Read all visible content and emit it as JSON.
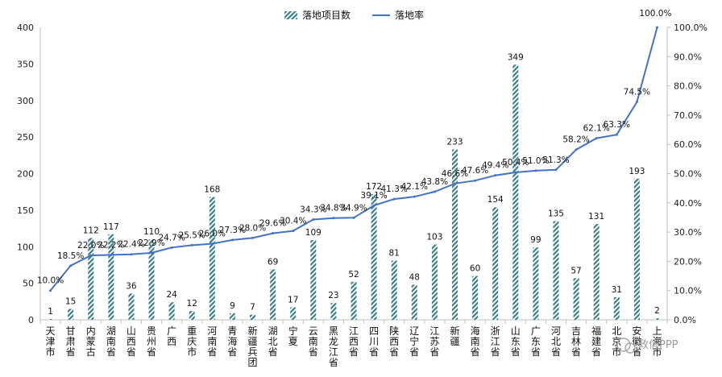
{
  "chart_data": {
    "type": "bar",
    "categories": [
      "天津市",
      "甘肃省",
      "内蒙古",
      "湖南省",
      "山西省",
      "贵州省",
      "广西",
      "重庆市",
      "河南省",
      "青海省",
      "新疆兵团",
      "湖北省",
      "宁夏",
      "云南省",
      "黑龙江省",
      "江西省",
      "四川省",
      "陕西省",
      "辽宁省",
      "江苏省",
      "新疆",
      "海南省",
      "浙江省",
      "山东省",
      "广东省",
      "河北省",
      "吉林省",
      "福建省",
      "北京市",
      "安徽省",
      "上海市"
    ],
    "series": [
      {
        "name": "落地项目数",
        "type": "bar",
        "axis": "left",
        "color": "#3a7f86",
        "values": [
          1,
          15,
          112,
          117,
          36,
          110,
          24,
          12,
          168,
          9,
          7,
          69,
          17,
          109,
          23,
          52,
          172,
          81,
          48,
          103,
          233,
          60,
          154,
          349,
          99,
          135,
          57,
          131,
          31,
          193,
          2
        ],
        "labels": [
          "1",
          "15",
          "112",
          "117",
          "36",
          "110",
          "24",
          "12",
          "168",
          "9",
          "7",
          "69",
          "17",
          "109",
          "23",
          "52",
          "172",
          "81",
          "48",
          "103",
          "233",
          "60",
          "154",
          "349",
          "99",
          "135",
          "57",
          "131",
          "31",
          "193",
          "2"
        ]
      },
      {
        "name": "落地率",
        "type": "line",
        "axis": "right",
        "color": "#4472c4",
        "values": [
          10.0,
          18.5,
          22.0,
          22.2,
          22.4,
          22.9,
          24.7,
          25.5,
          26.0,
          27.3,
          28.0,
          29.6,
          30.4,
          34.3,
          34.8,
          34.9,
          39.1,
          41.3,
          42.1,
          43.8,
          46.6,
          47.6,
          49.4,
          50.4,
          51.0,
          51.3,
          58.2,
          62.1,
          63.3,
          74.5,
          100.0
        ],
        "labels": [
          "10.0%",
          "18.5%",
          "22.0%",
          "22.2%",
          "22.4%",
          "22.9%",
          "24.7%",
          "25.5%",
          "26.0%",
          "27.3%",
          "28.0%",
          "29.6%",
          "30.4%",
          "34.3%",
          "34.8%",
          "34.9%",
          "39.1%",
          "41.3%",
          "42.1%",
          "43.8%",
          "46.6%",
          "47.6%",
          "49.4%",
          "50.4%",
          "51.0%",
          "51.3%",
          "58.2%",
          "62.1%",
          "63.3%",
          "74.5%",
          "100.0%"
        ]
      }
    ],
    "ylim_left": [
      0,
      400
    ],
    "yticks_left": [
      "0",
      "50",
      "100",
      "150",
      "200",
      "250",
      "300",
      "350",
      "400"
    ],
    "ylim_right": [
      0,
      100
    ],
    "yticks_right": [
      "0.0%",
      "10.0%",
      "20.0%",
      "30.0%",
      "40.0%",
      "50.0%",
      "60.0%",
      "70.0%",
      "80.0%",
      "90.0%",
      "100.0%"
    ],
    "legend_position": "top-center",
    "grid": false
  },
  "watermark": "政信PPP",
  "colors": {
    "bar": "#3a7f86",
    "line": "#4472c4",
    "axis": "#bfbfbf"
  }
}
